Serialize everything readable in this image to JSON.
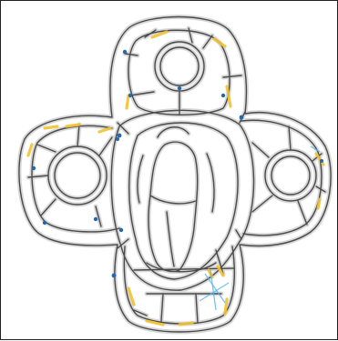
{
  "canvas": {
    "background": "#ffffff",
    "border_color": "#202020"
  },
  "colors": {
    "lead_line": "#4a4a4a",
    "lead_shadow": "#d8d8d8",
    "amber_paint": "#f1c232",
    "cyan_line": "#58b7e8",
    "junction_dot": "#2466b0"
  },
  "icon": "quatrefoil-stained-glass-leadwork"
}
